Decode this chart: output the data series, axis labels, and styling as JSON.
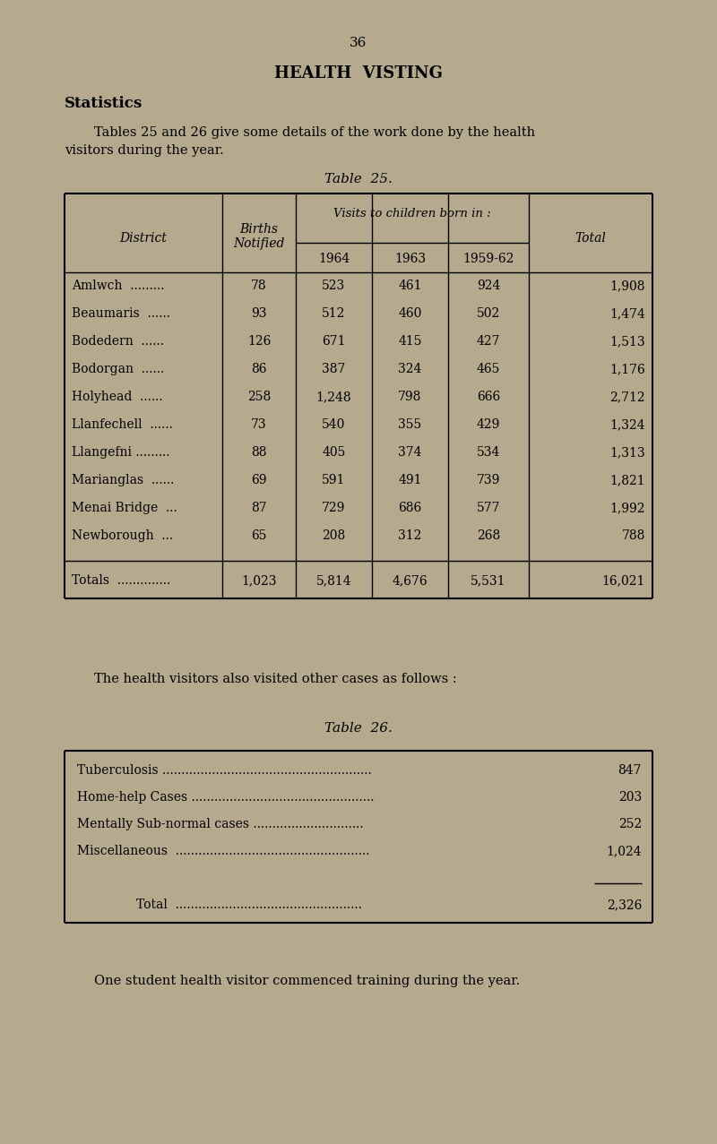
{
  "bg_color": "#b5aa8e",
  "page_number": "36",
  "main_title": "HEALTH  VISTING",
  "section_title": "Statistics",
  "intro_line1": "Tables 25 and 26 give some details of the work done by the health",
  "intro_line2": "visitors during the year.",
  "table25_title": "Table  25.",
  "table25_header_col1": "District",
  "table25_header_col2_line1": "Births",
  "table25_header_col2_line2": "Notified",
  "table25_header_visits": "Visits to children born in :",
  "table25_header_1964": "1964",
  "table25_header_1963": "1963",
  "table25_header_1959": "1959-62",
  "table25_header_total": "Total",
  "table25_rows": [
    [
      "Amlwch  .........",
      "78",
      "523",
      "461",
      "924",
      "1,908"
    ],
    [
      "Beaumaris  ......",
      "93",
      "512",
      "460",
      "502",
      "1,474"
    ],
    [
      "Bodedern  ......",
      "126",
      "671",
      "415",
      "427",
      "1,513"
    ],
    [
      "Bodorgan  ......",
      "86",
      "387",
      "324",
      "465",
      "1,176"
    ],
    [
      "Holyhead  ......",
      "258",
      "1,248",
      "798",
      "666",
      "2,712"
    ],
    [
      "Llanfechell  ......",
      "73",
      "540",
      "355",
      "429",
      "1,324"
    ],
    [
      "Llangefni .........",
      "88",
      "405",
      "374",
      "534",
      "1,313"
    ],
    [
      "Marianglas  ......",
      "69",
      "591",
      "491",
      "739",
      "1,821"
    ],
    [
      "Menai Bridge  ...",
      "87",
      "729",
      "686",
      "577",
      "1,992"
    ],
    [
      "Newborough  ...",
      "65",
      "208",
      "312",
      "268",
      "788"
    ]
  ],
  "table25_totals_label": "Totals  ..............",
  "table25_totals": [
    "1,023",
    "5,814",
    "4,676",
    "5,531",
    "16,021"
  ],
  "between_text": "The health visitors also visited other cases as follows :",
  "table26_title": "Table  26.",
  "table26_rows": [
    [
      "Tuberculosis .......................................................",
      "847"
    ],
    [
      "Home-help Cases ................................................",
      "203"
    ],
    [
      "Mentally Sub-normal cases .............................",
      "252"
    ],
    [
      "Miscellaneous  ...................................................",
      "1,024"
    ]
  ],
  "table26_total_label": "Total  .................................................",
  "table26_total": "2,326",
  "footer_text": "One student health visitor commenced training during the year."
}
